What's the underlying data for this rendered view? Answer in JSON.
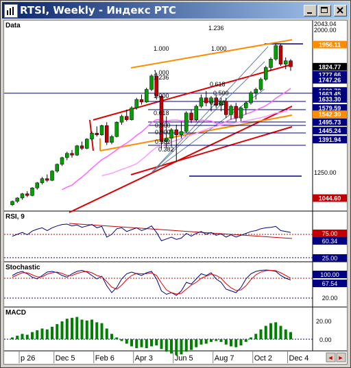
{
  "window": {
    "title": "RTSI, Weekly - Индекс РТС"
  },
  "colors": {
    "up": "#00a000",
    "down": "#c00000",
    "orange": "#ff8c00",
    "magenta": "#ff66ff",
    "navy": "#000080",
    "red": "#e00000"
  },
  "panes": {
    "price": {
      "label": "Data"
    },
    "rsi": {
      "label": "RSI, 9"
    },
    "stoch": {
      "label": "Stochastic"
    },
    "macd": {
      "label": "MACD"
    }
  },
  "price_axis": {
    "top_labels": [
      "2043.04",
      "2000.00"
    ],
    "scale_label": "1250.00",
    "boxes": [
      "1956.11",
      "1824.77",
      "1777.66",
      "1747.26",
      "1680.78",
      "1663.45",
      "1633.30",
      "1579.59",
      "1542.30",
      "1495.73",
      "1445.24",
      "1391.94",
      "1044.60"
    ]
  },
  "fib_labels": [
    "1.236",
    "1.000",
    "1.000",
    "1.000",
    "1.236",
    "0.618",
    "0.500",
    "0.382",
    "0.382",
    "1.000",
    "0.500",
    "0.618",
    "0.500",
    "0.382"
  ],
  "rsi_axis": {
    "levels": [
      "75.00",
      "60.34",
      "25.00"
    ]
  },
  "stoch_axis": {
    "levels": [
      "100.00",
      "67.54",
      "20.00"
    ]
  },
  "macd_axis": {
    "levels": [
      "20.00",
      "0.00"
    ]
  },
  "x_axis": {
    "labels": [
      "p 26",
      "Dec 5",
      "Feb 6",
      "Apr 3",
      "Jun 5",
      "Aug 7",
      "Oct 2",
      "Dec 4"
    ]
  },
  "chart_data": {
    "type": "candlestick",
    "title": "RTSI, Weekly - Индекс РТС",
    "x_ticks": [
      "p 26",
      "Dec 5",
      "Feb 6",
      "Apr 3",
      "Jun 5",
      "Aug 7",
      "Oct 2",
      "Dec 4"
    ],
    "ylim": [
      1000,
      2050
    ],
    "last_close": 1824.77,
    "candles": [
      {
        "o": 1005,
        "h": 1030,
        "l": 998,
        "c": 1025
      },
      {
        "o": 1025,
        "h": 1050,
        "l": 1015,
        "c": 1045
      },
      {
        "o": 1045,
        "h": 1075,
        "l": 1035,
        "c": 1070
      },
      {
        "o": 1070,
        "h": 1085,
        "l": 1050,
        "c": 1060
      },
      {
        "o": 1060,
        "h": 1110,
        "l": 1055,
        "c": 1105
      },
      {
        "o": 1105,
        "h": 1140,
        "l": 1095,
        "c": 1135
      },
      {
        "o": 1135,
        "h": 1170,
        "l": 1125,
        "c": 1160
      },
      {
        "o": 1160,
        "h": 1185,
        "l": 1140,
        "c": 1150
      },
      {
        "o": 1150,
        "h": 1210,
        "l": 1145,
        "c": 1205
      },
      {
        "o": 1205,
        "h": 1250,
        "l": 1195,
        "c": 1245
      },
      {
        "o": 1245,
        "h": 1290,
        "l": 1235,
        "c": 1285
      },
      {
        "o": 1285,
        "h": 1320,
        "l": 1270,
        "c": 1310
      },
      {
        "o": 1310,
        "h": 1330,
        "l": 1285,
        "c": 1300
      },
      {
        "o": 1300,
        "h": 1360,
        "l": 1295,
        "c": 1355
      },
      {
        "o": 1355,
        "h": 1380,
        "l": 1330,
        "c": 1340
      },
      {
        "o": 1340,
        "h": 1400,
        "l": 1335,
        "c": 1395
      },
      {
        "o": 1395,
        "h": 1440,
        "l": 1385,
        "c": 1430
      },
      {
        "o": 1430,
        "h": 1470,
        "l": 1410,
        "c": 1420
      },
      {
        "o": 1420,
        "h": 1480,
        "l": 1415,
        "c": 1475
      },
      {
        "o": 1475,
        "h": 1495,
        "l": 1360,
        "c": 1375
      },
      {
        "o": 1375,
        "h": 1420,
        "l": 1365,
        "c": 1410
      },
      {
        "o": 1410,
        "h": 1500,
        "l": 1405,
        "c": 1495
      },
      {
        "o": 1495,
        "h": 1540,
        "l": 1480,
        "c": 1530
      },
      {
        "o": 1530,
        "h": 1570,
        "l": 1500,
        "c": 1510
      },
      {
        "o": 1510,
        "h": 1590,
        "l": 1505,
        "c": 1580
      },
      {
        "o": 1580,
        "h": 1640,
        "l": 1570,
        "c": 1630
      },
      {
        "o": 1630,
        "h": 1660,
        "l": 1600,
        "c": 1615
      },
      {
        "o": 1615,
        "h": 1700,
        "l": 1610,
        "c": 1690
      },
      {
        "o": 1690,
        "h": 1780,
        "l": 1680,
        "c": 1770
      },
      {
        "o": 1770,
        "h": 1790,
        "l": 1630,
        "c": 1650
      },
      {
        "o": 1650,
        "h": 1660,
        "l": 1340,
        "c": 1380
      },
      {
        "o": 1380,
        "h": 1530,
        "l": 1340,
        "c": 1400
      },
      {
        "o": 1400,
        "h": 1460,
        "l": 1350,
        "c": 1450
      },
      {
        "o": 1450,
        "h": 1480,
        "l": 1260,
        "c": 1420
      },
      {
        "o": 1420,
        "h": 1500,
        "l": 1400,
        "c": 1440
      },
      {
        "o": 1440,
        "h": 1560,
        "l": 1430,
        "c": 1550
      },
      {
        "o": 1550,
        "h": 1570,
        "l": 1490,
        "c": 1510
      },
      {
        "o": 1510,
        "h": 1600,
        "l": 1500,
        "c": 1590
      },
      {
        "o": 1590,
        "h": 1660,
        "l": 1580,
        "c": 1640
      },
      {
        "o": 1640,
        "h": 1680,
        "l": 1590,
        "c": 1610
      },
      {
        "o": 1610,
        "h": 1650,
        "l": 1560,
        "c": 1640
      },
      {
        "o": 1640,
        "h": 1660,
        "l": 1580,
        "c": 1595
      },
      {
        "o": 1595,
        "h": 1640,
        "l": 1560,
        "c": 1620
      },
      {
        "o": 1620,
        "h": 1640,
        "l": 1520,
        "c": 1540
      },
      {
        "o": 1540,
        "h": 1600,
        "l": 1510,
        "c": 1590
      },
      {
        "o": 1590,
        "h": 1610,
        "l": 1500,
        "c": 1520
      },
      {
        "o": 1520,
        "h": 1590,
        "l": 1500,
        "c": 1580
      },
      {
        "o": 1580,
        "h": 1620,
        "l": 1540,
        "c": 1610
      },
      {
        "o": 1610,
        "h": 1680,
        "l": 1600,
        "c": 1670
      },
      {
        "o": 1670,
        "h": 1700,
        "l": 1630,
        "c": 1690
      },
      {
        "o": 1690,
        "h": 1760,
        "l": 1680,
        "c": 1750
      },
      {
        "o": 1750,
        "h": 1830,
        "l": 1740,
        "c": 1820
      },
      {
        "o": 1820,
        "h": 1880,
        "l": 1800,
        "c": 1870
      },
      {
        "o": 1870,
        "h": 1960,
        "l": 1860,
        "c": 1950
      },
      {
        "o": 1950,
        "h": 1960,
        "l": 1830,
        "c": 1840
      },
      {
        "o": 1840,
        "h": 1880,
        "l": 1810,
        "c": 1860
      },
      {
        "o": 1860,
        "h": 1870,
        "l": 1800,
        "c": 1825
      }
    ],
    "rsi": [
      52,
      56,
      60,
      55,
      63,
      67,
      70,
      64,
      70,
      74,
      77,
      78,
      74,
      76,
      71,
      74,
      77,
      70,
      73,
      50,
      56,
      68,
      70,
      62,
      66,
      70,
      64,
      68,
      74,
      60,
      42,
      46,
      50,
      45,
      48,
      58,
      52,
      58,
      62,
      56,
      60,
      54,
      57,
      50,
      55,
      50,
      54,
      58,
      62,
      64,
      68,
      70,
      71,
      73,
      64,
      62,
      60
    ],
    "stoch_k": [
      80,
      88,
      92,
      85,
      75,
      70,
      80,
      90,
      92,
      88,
      80,
      75,
      85,
      92,
      95,
      90,
      80,
      70,
      78,
      50,
      30,
      45,
      70,
      85,
      90,
      85,
      80,
      88,
      92,
      70,
      35,
      25,
      30,
      22,
      35,
      60,
      55,
      70,
      85,
      80,
      88,
      70,
      60,
      40,
      35,
      30,
      45,
      70,
      85,
      92,
      95,
      96,
      95,
      92,
      80,
      72,
      67
    ],
    "stoch_d": [
      75,
      82,
      88,
      88,
      82,
      76,
      76,
      84,
      88,
      90,
      86,
      80,
      80,
      86,
      90,
      92,
      88,
      80,
      76,
      62,
      46,
      40,
      52,
      68,
      80,
      86,
      85,
      85,
      88,
      80,
      58,
      38,
      30,
      26,
      28,
      40,
      52,
      60,
      72,
      78,
      84,
      80,
      72,
      56,
      44,
      36,
      38,
      50,
      68,
      82,
      90,
      94,
      95,
      94,
      88,
      80,
      72
    ],
    "macd": [
      2,
      4,
      6,
      5,
      8,
      10,
      12,
      11,
      14,
      17,
      20,
      23,
      24,
      25,
      22,
      21,
      22,
      19,
      18,
      12,
      6,
      2,
      -2,
      -5,
      -8,
      -10,
      -9,
      -10,
      -8,
      -7,
      -11,
      -14,
      -16,
      -18,
      -17,
      -14,
      -12,
      -9,
      -6,
      -5,
      -3,
      -2,
      -3,
      -6,
      -8,
      -9,
      -7,
      -3,
      2,
      6,
      11,
      15,
      18,
      19,
      15,
      11,
      8
    ]
  }
}
